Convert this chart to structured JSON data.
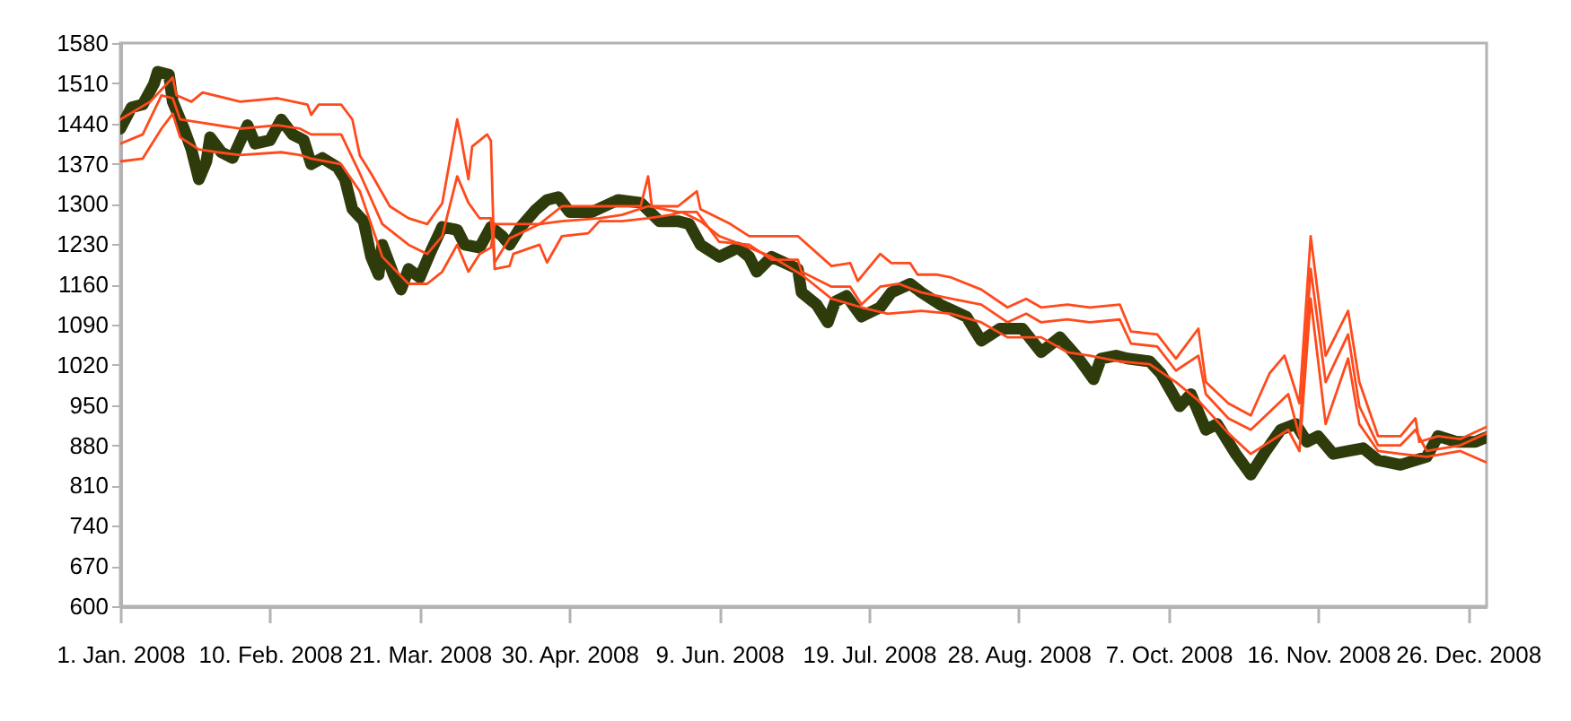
{
  "chart_data": {
    "type": "line",
    "xlim": [
      "2008-01-01",
      "2008-12-31"
    ],
    "xticks": [
      {
        "value": "2008-01-01",
        "label": "1. Jan. 2008"
      },
      {
        "value": "2008-02-10",
        "label": "10. Feb. 2008"
      },
      {
        "value": "2008-03-21",
        "label": "21. Mar. 2008"
      },
      {
        "value": "2008-04-30",
        "label": "30. Apr. 2008"
      },
      {
        "value": "2008-06-09",
        "label": "9. Jun. 2008"
      },
      {
        "value": "2008-07-19",
        "label": "19. Jul. 2008"
      },
      {
        "value": "2008-08-28",
        "label": "28. Aug. 2008"
      },
      {
        "value": "2008-10-07",
        "label": "7. Oct. 2008"
      },
      {
        "value": "2008-11-16",
        "label": "16. Nov. 2008"
      },
      {
        "value": "2008-12-26",
        "label": "26. Dec. 2008"
      }
    ],
    "ylim": [
      600,
      1580
    ],
    "yticks": [
      600,
      670,
      740,
      810,
      880,
      950,
      1020,
      1090,
      1160,
      1230,
      1300,
      1370,
      1440,
      1510,
      1580
    ],
    "series": [
      {
        "color": "#2e3b0b",
        "x": [
          "2008-01-01",
          "2008-01-04",
          "2008-01-07",
          "2008-01-10",
          "2008-01-11",
          "2008-01-14",
          "2008-01-15",
          "2008-01-18",
          "2008-01-20",
          "2008-01-22",
          "2008-01-24",
          "2008-01-25",
          "2008-01-28",
          "2008-01-31",
          "2008-02-04",
          "2008-02-06",
          "2008-02-10",
          "2008-02-13",
          "2008-02-16",
          "2008-02-19",
          "2008-02-21",
          "2008-02-24",
          "2008-02-28",
          "2008-03-01",
          "2008-03-03",
          "2008-03-06",
          "2008-03-08",
          "2008-03-10",
          "2008-03-11",
          "2008-03-14",
          "2008-03-16",
          "2008-03-18",
          "2008-03-21",
          "2008-03-24",
          "2008-03-27",
          "2008-03-31",
          "2008-04-02",
          "2008-04-06",
          "2008-04-09",
          "2008-04-12",
          "2008-04-14",
          "2008-04-17",
          "2008-04-21",
          "2008-04-24",
          "2008-04-27",
          "2008-04-30",
          "2008-05-06",
          "2008-05-13",
          "2008-05-19",
          "2008-05-24",
          "2008-05-29",
          "2008-06-01",
          "2008-06-04",
          "2008-06-09",
          "2008-06-14",
          "2008-06-17",
          "2008-06-19",
          "2008-06-23",
          "2008-06-30",
          "2008-07-01",
          "2008-07-05",
          "2008-07-08",
          "2008-07-10",
          "2008-07-13",
          "2008-07-17",
          "2008-07-22",
          "2008-07-25",
          "2008-07-30",
          "2008-08-02",
          "2008-08-07",
          "2008-08-14",
          "2008-08-18",
          "2008-08-23",
          "2008-08-29",
          "2008-09-03",
          "2008-09-08",
          "2008-09-13",
          "2008-09-17",
          "2008-09-19",
          "2008-09-23",
          "2008-09-26",
          "2008-10-02",
          "2008-10-05",
          "2008-10-10",
          "2008-10-13",
          "2008-10-17",
          "2008-10-20",
          "2008-10-25",
          "2008-10-29",
          "2008-11-02",
          "2008-11-06",
          "2008-11-10",
          "2008-11-13",
          "2008-11-16",
          "2008-11-20",
          "2008-11-24",
          "2008-11-28",
          "2008-12-02",
          "2008-12-08",
          "2008-12-15",
          "2008-12-18",
          "2008-12-23",
          "2008-12-28",
          "2008-12-31"
        ],
        "values": [
          1431,
          1468,
          1473,
          1509,
          1530,
          1525,
          1478,
          1431,
          1395,
          1343,
          1374,
          1416,
          1390,
          1380,
          1437,
          1405,
          1411,
          1447,
          1421,
          1411,
          1369,
          1380,
          1364,
          1343,
          1291,
          1270,
          1208,
          1177,
          1229,
          1177,
          1151,
          1187,
          1172,
          1218,
          1260,
          1255,
          1229,
          1224,
          1260,
          1244,
          1229,
          1260,
          1290,
          1307,
          1312,
          1286,
          1286,
          1307,
          1302,
          1270,
          1270,
          1265,
          1229,
          1208,
          1224,
          1208,
          1182,
          1208,
          1187,
          1146,
          1125,
          1094,
          1130,
          1140,
          1104,
          1120,
          1146,
          1161,
          1146,
          1125,
          1104,
          1062,
          1083,
          1083,
          1042,
          1068,
          1031,
          995,
          1031,
          1036,
          1031,
          1026,
          1005,
          948,
          969,
          907,
          917,
          865,
          829,
          870,
          907,
          917,
          886,
          896,
          865,
          870,
          875,
          854,
          846,
          860,
          896,
          886,
          886,
          894
        ]
      },
      {
        "color": "#ff4a1c",
        "x": [
          "2008-01-01",
          "2008-01-09",
          "2008-01-15",
          "2008-01-16",
          "2008-01-20",
          "2008-01-23",
          "2008-02-02",
          "2008-02-12",
          "2008-02-20",
          "2008-02-21",
          "2008-02-23",
          "2008-02-29",
          "2008-03-03",
          "2008-03-05",
          "2008-03-08",
          "2008-03-13",
          "2008-03-18",
          "2008-03-23",
          "2008-03-27",
          "2008-03-31",
          "2008-04-01",
          "2008-04-03",
          "2008-04-04",
          "2008-04-08",
          "2008-04-09",
          "2008-04-10",
          "2008-04-14",
          "2008-04-15",
          "2008-04-22",
          "2008-04-24",
          "2008-04-28",
          "2008-05-05",
          "2008-05-08",
          "2008-05-14",
          "2008-05-21",
          "2008-05-27",
          "2008-05-30",
          "2008-06-04",
          "2008-06-09",
          "2008-06-17",
          "2008-06-23",
          "2008-07-01",
          "2008-07-09",
          "2008-07-17",
          "2008-07-24",
          "2008-08-02",
          "2008-08-10",
          "2008-08-18",
          "2008-08-25",
          "2008-09-03",
          "2008-09-10",
          "2008-09-16",
          "2008-09-24",
          "2008-10-02",
          "2008-10-09",
          "2008-10-15",
          "2008-10-23",
          "2008-10-29",
          "2008-11-03",
          "2008-11-08",
          "2008-11-11",
          "2008-11-14",
          "2008-11-18",
          "2008-11-24",
          "2008-11-27",
          "2008-12-02",
          "2008-12-08",
          "2008-12-15",
          "2008-12-24",
          "2008-12-31"
        ],
        "values": [
          1447,
          1478,
          1520,
          1489,
          1478,
          1494,
          1478,
          1484,
          1473,
          1455,
          1473,
          1473,
          1447,
          1384,
          1353,
          1296,
          1275,
          1265,
          1301,
          1447,
          1416,
          1343,
          1400,
          1421,
          1410,
          1187,
          1192,
          1213,
          1229,
          1198,
          1244,
          1249,
          1270,
          1270,
          1275,
          1281,
          1286,
          1270,
          1244,
          1224,
          1208,
          1177,
          1135,
          1120,
          1109,
          1114,
          1109,
          1094,
          1068,
          1068,
          1042,
          1036,
          1026,
          1021,
          990,
          958,
          901,
          865,
          886,
          907,
          870,
          1135,
          917,
          1031,
          917,
          870,
          865,
          860,
          870,
          850
        ]
      },
      {
        "color": "#ff4a1c",
        "x": [
          "2008-01-01",
          "2008-01-07",
          "2008-01-12",
          "2008-01-15",
          "2008-01-17",
          "2008-01-22",
          "2008-02-02",
          "2008-02-12",
          "2008-02-18",
          "2008-02-21",
          "2008-02-29",
          "2008-03-05",
          "2008-03-11",
          "2008-03-18",
          "2008-03-23",
          "2008-03-27",
          "2008-03-31",
          "2008-04-03",
          "2008-04-06",
          "2008-04-09",
          "2008-04-10",
          "2008-04-14",
          "2008-04-22",
          "2008-04-28",
          "2008-05-08",
          "2008-05-14",
          "2008-05-21",
          "2008-05-29",
          "2008-06-03",
          "2008-06-09",
          "2008-06-17",
          "2008-06-23",
          "2008-06-30",
          "2008-07-01",
          "2008-07-09",
          "2008-07-14",
          "2008-07-17",
          "2008-07-22",
          "2008-07-27",
          "2008-08-02",
          "2008-08-10",
          "2008-08-18",
          "2008-08-25",
          "2008-08-30",
          "2008-09-03",
          "2008-09-10",
          "2008-09-16",
          "2008-09-24",
          "2008-09-27",
          "2008-10-04",
          "2008-10-09",
          "2008-10-15",
          "2008-10-17",
          "2008-10-23",
          "2008-10-29",
          "2008-11-03",
          "2008-11-08",
          "2008-11-11",
          "2008-11-14",
          "2008-11-18",
          "2008-11-24",
          "2008-11-27",
          "2008-12-02",
          "2008-12-08",
          "2008-12-12",
          "2008-12-15",
          "2008-12-24",
          "2008-12-31"
        ],
        "values": [
          1405,
          1421,
          1489,
          1484,
          1447,
          1442,
          1431,
          1437,
          1431,
          1421,
          1421,
          1353,
          1265,
          1229,
          1213,
          1244,
          1348,
          1302,
          1275,
          1275,
          1198,
          1240,
          1265,
          1270,
          1275,
          1281,
          1296,
          1286,
          1286,
          1234,
          1229,
          1203,
          1203,
          1182,
          1156,
          1156,
          1125,
          1156,
          1161,
          1146,
          1135,
          1125,
          1094,
          1109,
          1094,
          1099,
          1094,
          1099,
          1057,
          1052,
          1010,
          1036,
          969,
          927,
          907,
          938,
          969,
          896,
          1187,
          990,
          1073,
          948,
          880,
          880,
          907,
          870,
          880,
          901
        ]
      },
      {
        "color": "#ff4a1c",
        "x": [
          "2008-01-01",
          "2008-01-07",
          "2008-01-12",
          "2008-01-15",
          "2008-01-17",
          "2008-01-22",
          "2008-01-27",
          "2008-02-02",
          "2008-02-13",
          "2008-02-18",
          "2008-02-21",
          "2008-02-29",
          "2008-03-05",
          "2008-03-11",
          "2008-03-18",
          "2008-03-23",
          "2008-03-27",
          "2008-03-31",
          "2008-04-03",
          "2008-04-06",
          "2008-04-09",
          "2008-04-10",
          "2008-04-16",
          "2008-04-22",
          "2008-04-28",
          "2008-05-19",
          "2008-05-21",
          "2008-05-22",
          "2008-05-29",
          "2008-06-03",
          "2008-06-04",
          "2008-06-12",
          "2008-06-17",
          "2008-06-30",
          "2008-07-09",
          "2008-07-14",
          "2008-07-16",
          "2008-07-22",
          "2008-07-25",
          "2008-07-30",
          "2008-08-01",
          "2008-08-06",
          "2008-08-10",
          "2008-08-18",
          "2008-08-25",
          "2008-08-30",
          "2008-09-03",
          "2008-09-10",
          "2008-09-16",
          "2008-09-24",
          "2008-09-27",
          "2008-10-04",
          "2008-10-09",
          "2008-10-15",
          "2008-10-17",
          "2008-10-23",
          "2008-10-29",
          "2008-11-03",
          "2008-11-07",
          "2008-11-11",
          "2008-11-14",
          "2008-11-18",
          "2008-11-24",
          "2008-11-27",
          "2008-12-02",
          "2008-12-08",
          "2008-12-12",
          "2008-12-13",
          "2008-12-18",
          "2008-12-24",
          "2008-12-31"
        ],
        "values": [
          1374,
          1379,
          1431,
          1457,
          1416,
          1395,
          1390,
          1385,
          1390,
          1385,
          1379,
          1369,
          1322,
          1208,
          1161,
          1161,
          1182,
          1229,
          1182,
          1213,
          1224,
          1265,
          1265,
          1265,
          1296,
          1296,
          1348,
          1296,
          1296,
          1322,
          1291,
          1265,
          1244,
          1244,
          1192,
          1197,
          1166,
          1213,
          1197,
          1197,
          1177,
          1177,
          1172,
          1151,
          1120,
          1135,
          1120,
          1125,
          1120,
          1125,
          1078,
          1073,
          1031,
          1083,
          990,
          953,
          932,
          1005,
          1036,
          953,
          1244,
          1036,
          1114,
          990,
          896,
          896,
          927,
          886,
          896,
          891,
          912
        ]
      }
    ]
  }
}
